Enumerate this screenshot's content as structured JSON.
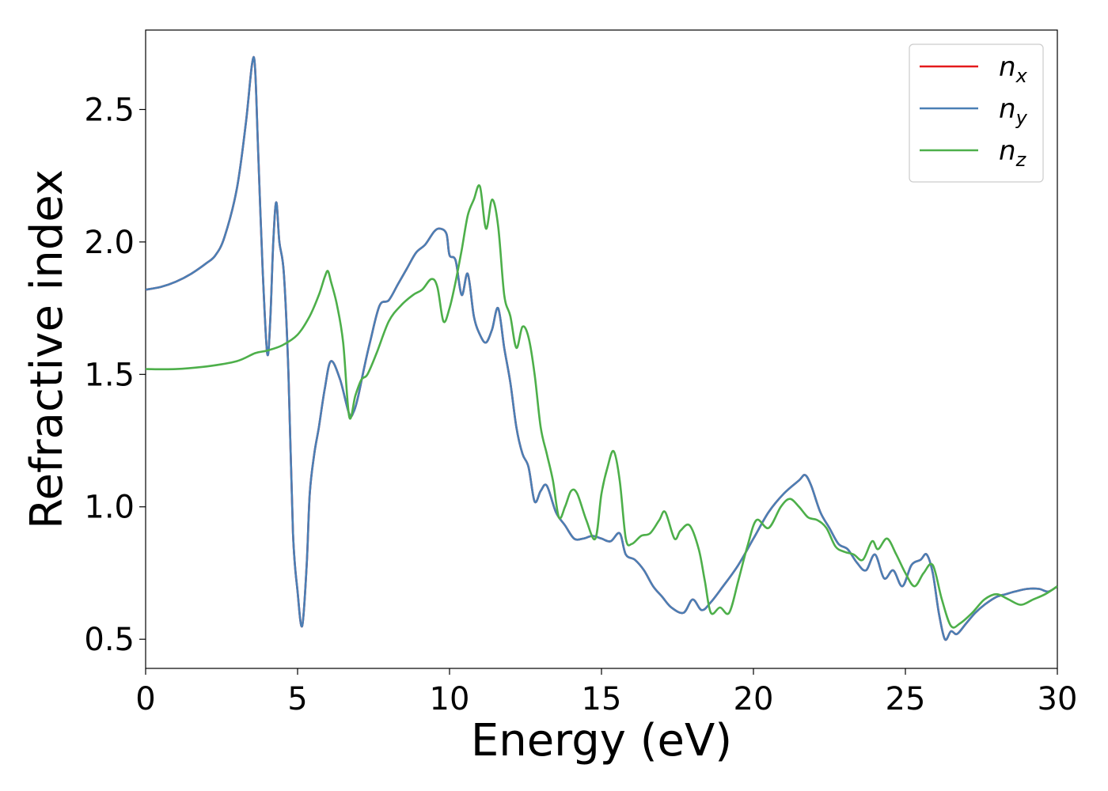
{
  "chart_data": {
    "type": "line",
    "title": "",
    "xlabel": "Energy (eV)",
    "ylabel": "Refractive index",
    "xlim": [
      0,
      30
    ],
    "ylim": [
      0.39,
      2.8
    ],
    "xticks": [
      0,
      5,
      10,
      15,
      20,
      25,
      30
    ],
    "xtick_labels": [
      "0",
      "5",
      "10",
      "15",
      "20",
      "25",
      "30"
    ],
    "yticks": [
      0.5,
      1.0,
      1.5,
      2.0,
      2.5
    ],
    "ytick_labels": [
      "0.5",
      "1.0",
      "1.5",
      "2.0",
      "2.5"
    ],
    "grid": false,
    "legend_position": "top-right",
    "series": [
      {
        "name": "n_x",
        "label_main": "n",
        "label_sub": "x",
        "color": "#e41a1c",
        "note_hidden": true,
        "x": [
          0,
          0.5,
          1.0,
          1.5,
          2.0,
          2.3,
          2.6,
          3.0,
          3.3,
          3.5,
          3.6,
          3.7,
          3.85,
          4.0,
          4.1,
          4.2,
          4.3,
          4.4,
          4.55,
          4.7,
          4.85,
          5.0,
          5.15,
          5.3,
          5.4,
          5.55,
          5.7,
          5.9,
          6.1,
          6.4,
          6.7,
          6.85,
          7.0,
          7.2,
          7.4,
          7.7,
          8.0,
          8.3,
          8.6,
          8.9,
          9.2,
          9.5,
          9.7,
          9.9,
          10.0,
          10.2,
          10.4,
          10.6,
          10.8,
          11.0,
          11.2,
          11.4,
          11.6,
          11.8,
          12.0,
          12.2,
          12.4,
          12.6,
          12.8,
          13.0,
          13.2,
          13.5,
          13.8,
          14.1,
          14.4,
          14.7,
          15.0,
          15.3,
          15.6,
          15.8,
          16.1,
          16.4,
          16.7,
          17.0,
          17.3,
          17.7,
          18.0,
          18.3,
          18.6,
          19.0,
          19.5,
          20.0,
          20.5,
          21.0,
          21.5,
          21.7,
          21.9,
          22.2,
          22.5,
          22.8,
          23.1,
          23.4,
          23.7,
          24.0,
          24.3,
          24.6,
          24.9,
          25.2,
          25.5,
          25.7,
          25.9,
          26.1,
          26.3,
          26.5,
          26.7,
          27.0,
          27.3,
          27.6,
          28.0,
          28.3,
          28.6,
          29.0,
          29.4,
          29.7,
          30.0
        ],
        "y": [
          1.82,
          1.83,
          1.85,
          1.88,
          1.92,
          1.95,
          2.02,
          2.2,
          2.45,
          2.67,
          2.66,
          2.35,
          1.9,
          1.58,
          1.7,
          2.0,
          2.15,
          2.0,
          1.88,
          1.5,
          0.9,
          0.68,
          0.55,
          0.78,
          1.05,
          1.2,
          1.3,
          1.45,
          1.55,
          1.48,
          1.35,
          1.36,
          1.42,
          1.53,
          1.63,
          1.76,
          1.78,
          1.84,
          1.9,
          1.96,
          1.99,
          2.04,
          2.05,
          2.03,
          1.95,
          1.93,
          1.8,
          1.88,
          1.72,
          1.65,
          1.62,
          1.67,
          1.75,
          1.6,
          1.47,
          1.3,
          1.2,
          1.15,
          1.02,
          1.06,
          1.08,
          0.98,
          0.93,
          0.88,
          0.88,
          0.89,
          0.88,
          0.87,
          0.9,
          0.82,
          0.8,
          0.76,
          0.7,
          0.66,
          0.62,
          0.6,
          0.65,
          0.61,
          0.64,
          0.7,
          0.78,
          0.88,
          0.98,
          1.05,
          1.1,
          1.12,
          1.08,
          0.98,
          0.92,
          0.86,
          0.84,
          0.79,
          0.76,
          0.82,
          0.73,
          0.76,
          0.7,
          0.78,
          0.8,
          0.82,
          0.75,
          0.6,
          0.5,
          0.53,
          0.52,
          0.56,
          0.6,
          0.63,
          0.66,
          0.67,
          0.68,
          0.69,
          0.69,
          0.68,
          0.7
        ]
      },
      {
        "name": "n_y",
        "label_main": "n",
        "label_sub": "y",
        "color": "#4a7fb5",
        "x": [
          0,
          0.5,
          1.0,
          1.5,
          2.0,
          2.3,
          2.6,
          3.0,
          3.3,
          3.5,
          3.6,
          3.7,
          3.85,
          4.0,
          4.1,
          4.2,
          4.3,
          4.4,
          4.55,
          4.7,
          4.85,
          5.0,
          5.15,
          5.3,
          5.4,
          5.55,
          5.7,
          5.9,
          6.1,
          6.4,
          6.7,
          6.85,
          7.0,
          7.2,
          7.4,
          7.7,
          8.0,
          8.3,
          8.6,
          8.9,
          9.2,
          9.5,
          9.7,
          9.9,
          10.0,
          10.2,
          10.4,
          10.6,
          10.8,
          11.0,
          11.2,
          11.4,
          11.6,
          11.8,
          12.0,
          12.2,
          12.4,
          12.6,
          12.8,
          13.0,
          13.2,
          13.5,
          13.8,
          14.1,
          14.4,
          14.7,
          15.0,
          15.3,
          15.6,
          15.8,
          16.1,
          16.4,
          16.7,
          17.0,
          17.3,
          17.7,
          18.0,
          18.3,
          18.6,
          19.0,
          19.5,
          20.0,
          20.5,
          21.0,
          21.5,
          21.7,
          21.9,
          22.2,
          22.5,
          22.8,
          23.1,
          23.4,
          23.7,
          24.0,
          24.3,
          24.6,
          24.9,
          25.2,
          25.5,
          25.7,
          25.9,
          26.1,
          26.3,
          26.5,
          26.7,
          27.0,
          27.3,
          27.6,
          28.0,
          28.3,
          28.6,
          29.0,
          29.4,
          29.7,
          30.0
        ],
        "y": [
          1.82,
          1.83,
          1.85,
          1.88,
          1.92,
          1.95,
          2.02,
          2.2,
          2.45,
          2.67,
          2.66,
          2.35,
          1.9,
          1.58,
          1.7,
          2.0,
          2.15,
          2.0,
          1.88,
          1.5,
          0.9,
          0.68,
          0.55,
          0.78,
          1.05,
          1.2,
          1.3,
          1.45,
          1.55,
          1.48,
          1.35,
          1.36,
          1.42,
          1.53,
          1.63,
          1.76,
          1.78,
          1.84,
          1.9,
          1.96,
          1.99,
          2.04,
          2.05,
          2.03,
          1.95,
          1.93,
          1.8,
          1.88,
          1.72,
          1.65,
          1.62,
          1.67,
          1.75,
          1.6,
          1.47,
          1.3,
          1.2,
          1.15,
          1.02,
          1.06,
          1.08,
          0.98,
          0.93,
          0.88,
          0.88,
          0.89,
          0.88,
          0.87,
          0.9,
          0.82,
          0.8,
          0.76,
          0.7,
          0.66,
          0.62,
          0.6,
          0.65,
          0.61,
          0.64,
          0.7,
          0.78,
          0.88,
          0.98,
          1.05,
          1.1,
          1.12,
          1.08,
          0.98,
          0.92,
          0.86,
          0.84,
          0.79,
          0.76,
          0.82,
          0.73,
          0.76,
          0.7,
          0.78,
          0.8,
          0.82,
          0.75,
          0.6,
          0.5,
          0.53,
          0.52,
          0.56,
          0.6,
          0.63,
          0.66,
          0.67,
          0.68,
          0.69,
          0.69,
          0.68,
          0.7
        ]
      },
      {
        "name": "n_z",
        "label_main": "n",
        "label_sub": "z",
        "color": "#4daf4a",
        "x": [
          0,
          1.0,
          2.0,
          3.0,
          3.6,
          4.0,
          4.5,
          5.0,
          5.4,
          5.7,
          5.9,
          6.0,
          6.1,
          6.3,
          6.5,
          6.7,
          6.9,
          7.1,
          7.3,
          7.6,
          8.0,
          8.4,
          8.8,
          9.1,
          9.4,
          9.6,
          9.8,
          10.0,
          10.2,
          10.4,
          10.6,
          10.8,
          11.0,
          11.2,
          11.4,
          11.6,
          11.8,
          12.0,
          12.2,
          12.4,
          12.6,
          12.8,
          13.0,
          13.2,
          13.4,
          13.6,
          13.8,
          14.0,
          14.2,
          14.5,
          14.8,
          15.0,
          15.2,
          15.4,
          15.6,
          15.8,
          16.0,
          16.3,
          16.6,
          16.9,
          17.1,
          17.4,
          17.6,
          17.9,
          18.2,
          18.4,
          18.6,
          18.9,
          19.2,
          19.5,
          19.8,
          20.1,
          20.5,
          20.9,
          21.2,
          21.5,
          21.8,
          22.1,
          22.4,
          22.7,
          23.0,
          23.3,
          23.6,
          23.9,
          24.1,
          24.4,
          24.7,
          25.0,
          25.3,
          25.6,
          25.9,
          26.2,
          26.5,
          26.8,
          27.2,
          27.6,
          28.0,
          28.4,
          28.8,
          29.2,
          29.6,
          30.0
        ],
        "y": [
          1.52,
          1.52,
          1.53,
          1.55,
          1.58,
          1.59,
          1.61,
          1.65,
          1.72,
          1.8,
          1.87,
          1.89,
          1.85,
          1.76,
          1.62,
          1.34,
          1.42,
          1.48,
          1.5,
          1.58,
          1.7,
          1.76,
          1.8,
          1.82,
          1.86,
          1.83,
          1.7,
          1.75,
          1.85,
          1.97,
          2.1,
          2.16,
          2.21,
          2.05,
          2.16,
          2.06,
          1.8,
          1.72,
          1.6,
          1.68,
          1.64,
          1.5,
          1.3,
          1.2,
          1.1,
          0.96,
          1.0,
          1.06,
          1.05,
          0.95,
          0.88,
          1.05,
          1.15,
          1.21,
          1.1,
          0.88,
          0.86,
          0.89,
          0.9,
          0.95,
          0.98,
          0.88,
          0.91,
          0.93,
          0.84,
          0.72,
          0.6,
          0.62,
          0.6,
          0.72,
          0.85,
          0.95,
          0.92,
          1.0,
          1.03,
          1.0,
          0.96,
          0.95,
          0.92,
          0.85,
          0.83,
          0.82,
          0.8,
          0.87,
          0.84,
          0.88,
          0.82,
          0.75,
          0.7,
          0.75,
          0.78,
          0.65,
          0.55,
          0.56,
          0.6,
          0.65,
          0.67,
          0.65,
          0.63,
          0.65,
          0.67,
          0.7
        ]
      }
    ]
  }
}
